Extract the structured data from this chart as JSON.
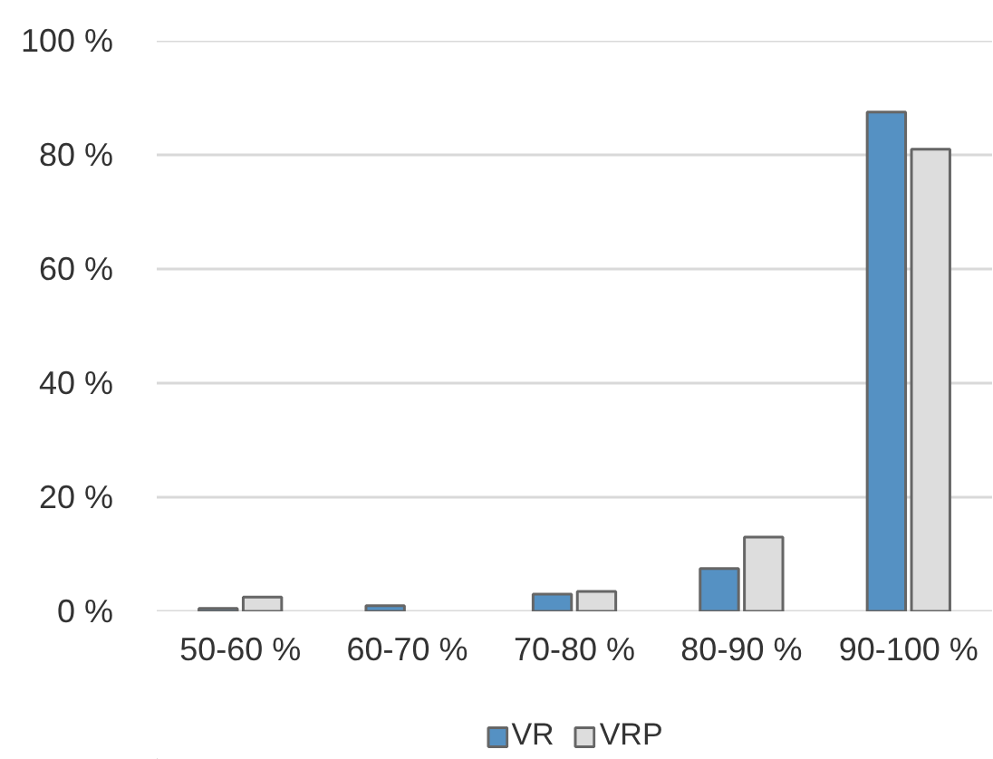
{
  "chart_data": {
    "type": "bar",
    "categories": [
      "50-60 %",
      "60-70 %",
      "70-80 %",
      "80-90 %",
      "90-100 %"
    ],
    "series": [
      {
        "name": "VR",
        "color": "#5591c3",
        "values": [
          0.5,
          1,
          3,
          7.5,
          87.5
        ]
      },
      {
        "name": "VRP",
        "color": "#dddddd",
        "values": [
          2.5,
          null,
          3.5,
          13,
          81
        ]
      }
    ],
    "ylim": [
      0,
      100
    ],
    "yticks": [
      {
        "value": 0,
        "label": "0 %"
      },
      {
        "value": 20,
        "label": "20 %"
      },
      {
        "value": 40,
        "label": "40 %"
      },
      {
        "value": 60,
        "label": "60 %"
      },
      {
        "value": 80,
        "label": "80 %"
      },
      {
        "value": 100,
        "label": "100 %"
      }
    ],
    "grid": "y",
    "legend": "bottom"
  }
}
